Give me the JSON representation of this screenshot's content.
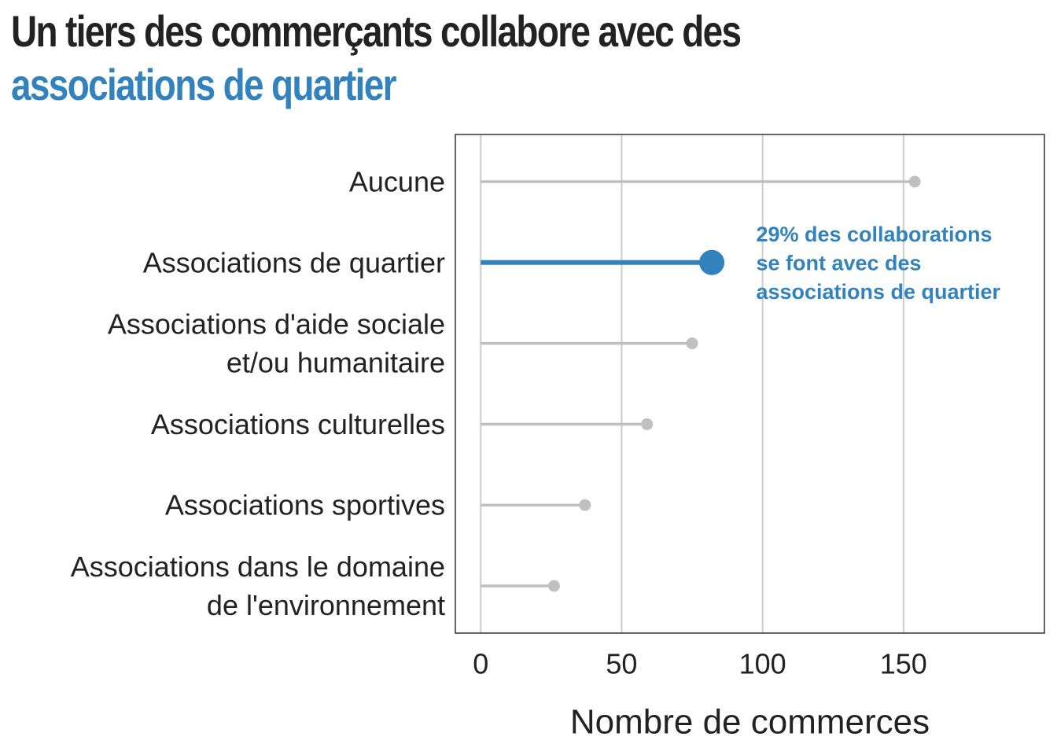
{
  "title": {
    "line1": "Un tiers des commerçants collabore avec des",
    "line2": "associations de quartier"
  },
  "chart_data": {
    "type": "lollipop",
    "orientation": "horizontal",
    "categories": [
      [
        "Aucune"
      ],
      [
        "Associations de quartier"
      ],
      [
        "Associations d'aide sociale",
        "et/ou humanitaire"
      ],
      [
        "Associations culturelles"
      ],
      [
        "Associations sportives"
      ],
      [
        "Associations dans le domaine",
        "de l'environnement"
      ]
    ],
    "values": [
      154,
      82,
      75,
      59,
      37,
      26
    ],
    "highlight_index": 1,
    "xlabel": "Nombre de commerces",
    "xlim": [
      -9,
      200
    ],
    "xticks": [
      0,
      50,
      100,
      150
    ],
    "grid": "vertical",
    "annotation": {
      "lines": [
        "29% des collaborations",
        "se font avec des",
        "associations de quartier"
      ],
      "x": 98,
      "category_index": 1
    },
    "colors": {
      "highlight": "#3282bd",
      "default": "#c0c0c0",
      "grid": "#cccccc",
      "text": "#222222"
    }
  }
}
